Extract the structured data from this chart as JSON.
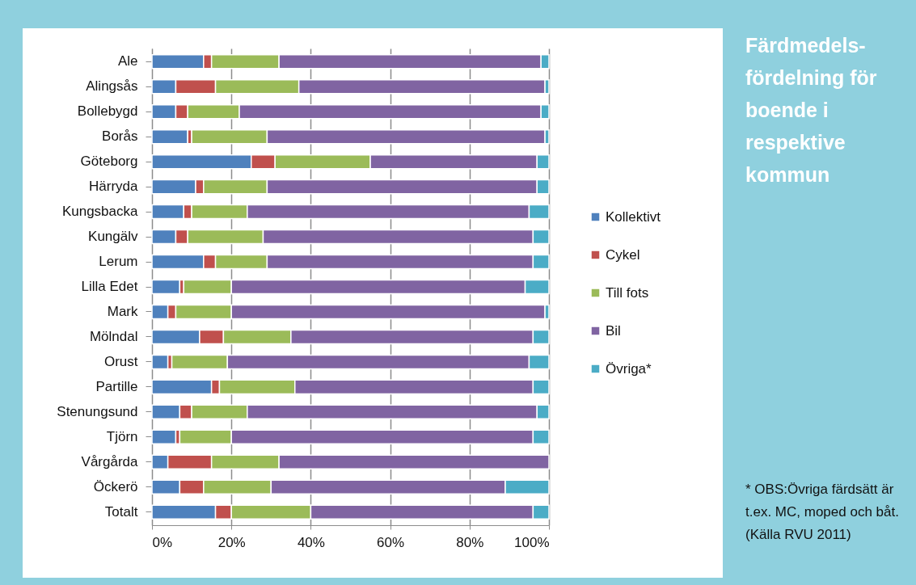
{
  "chart_data": {
    "type": "bar",
    "orientation": "horizontal",
    "stacked": true,
    "title": "Färdmedels-fördelning för boende i respektive kommun",
    "annotations": [
      "* OBS:Övriga färdsätt är t.ex. MC, moped och båt.",
      "(Källa RVU 2011)"
    ],
    "categories": [
      "Ale",
      "Alingsås",
      "Bollebygd",
      "Borås",
      "Göteborg",
      "Härryda",
      "Kungsbacka",
      "Kungälv",
      "Lerum",
      "Lilla Edet",
      "Mark",
      "Mölndal",
      "Orust",
      "Partille",
      "Stenungsund",
      "Tjörn",
      "Vårgårda",
      "Öckerö",
      "Totalt"
    ],
    "series": [
      {
        "name": "Kollektivt",
        "color": "#4f81bd",
        "values": [
          13,
          6,
          6,
          9,
          25,
          11,
          8,
          6,
          13,
          7,
          4,
          12,
          4,
          15,
          7,
          6,
          4,
          7,
          16
        ]
      },
      {
        "name": "Cykel",
        "color": "#c0504d",
        "values": [
          2,
          10,
          3,
          1,
          6,
          2,
          2,
          3,
          3,
          1,
          2,
          6,
          1,
          2,
          3,
          1,
          11,
          6,
          4
        ]
      },
      {
        "name": "Till fots",
        "color": "#9bbb59",
        "values": [
          17,
          21,
          13,
          19,
          24,
          16,
          14,
          19,
          13,
          12,
          14,
          17,
          14,
          19,
          14,
          13,
          17,
          17,
          20
        ]
      },
      {
        "name": "Bil",
        "color": "#8064a2",
        "values": [
          66,
          62,
          76,
          70,
          42,
          68,
          71,
          68,
          67,
          74,
          79,
          61,
          76,
          60,
          73,
          76,
          68,
          59,
          56
        ]
      },
      {
        "name": "Övriga*",
        "color": "#4bacc6",
        "values": [
          2,
          1,
          2,
          1,
          3,
          3,
          5,
          4,
          4,
          6,
          1,
          4,
          5,
          4,
          3,
          4,
          0,
          11,
          4
        ]
      }
    ],
    "xlim": [
      0,
      100
    ],
    "xticks": [
      {
        "value": 0,
        "label": "0%"
      },
      {
        "value": 20,
        "label": "20%"
      },
      {
        "value": 40,
        "label": "40%"
      },
      {
        "value": 60,
        "label": "60%"
      },
      {
        "value": 80,
        "label": "80%"
      },
      {
        "value": 100,
        "label": "100%"
      }
    ],
    "grid": "x",
    "legend": "right"
  }
}
